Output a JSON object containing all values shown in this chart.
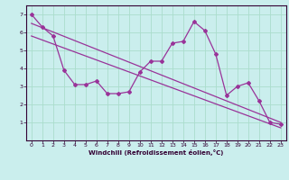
{
  "xlabel": "Windchill (Refroidissement éolien,°C)",
  "bg_color": "#caeeed",
  "line_color": "#993399",
  "grid_color": "#aaddcc",
  "x_data": [
    0,
    1,
    2,
    3,
    4,
    5,
    6,
    7,
    8,
    9,
    10,
    11,
    12,
    13,
    14,
    15,
    16,
    17,
    18,
    19,
    20,
    21,
    22,
    23
  ],
  "y_data": [
    7.0,
    6.3,
    5.8,
    3.9,
    3.1,
    3.1,
    3.3,
    2.6,
    2.6,
    2.7,
    3.8,
    4.4,
    4.4,
    5.4,
    5.5,
    6.6,
    6.1,
    4.8,
    2.5,
    3.0,
    3.2,
    2.2,
    1.0,
    0.9
  ],
  "trend1_x": [
    0,
    23
  ],
  "trend1_y": [
    6.5,
    1.0
  ],
  "trend2_x": [
    0,
    23
  ],
  "trend2_y": [
    5.8,
    0.7
  ],
  "xlim": [
    -0.5,
    23.5
  ],
  "ylim": [
    0,
    7.5
  ],
  "yticks": [
    1,
    2,
    3,
    4,
    5,
    6,
    7
  ],
  "xticks": [
    0,
    1,
    2,
    3,
    4,
    5,
    6,
    7,
    8,
    9,
    10,
    11,
    12,
    13,
    14,
    15,
    16,
    17,
    18,
    19,
    20,
    21,
    22,
    23
  ]
}
